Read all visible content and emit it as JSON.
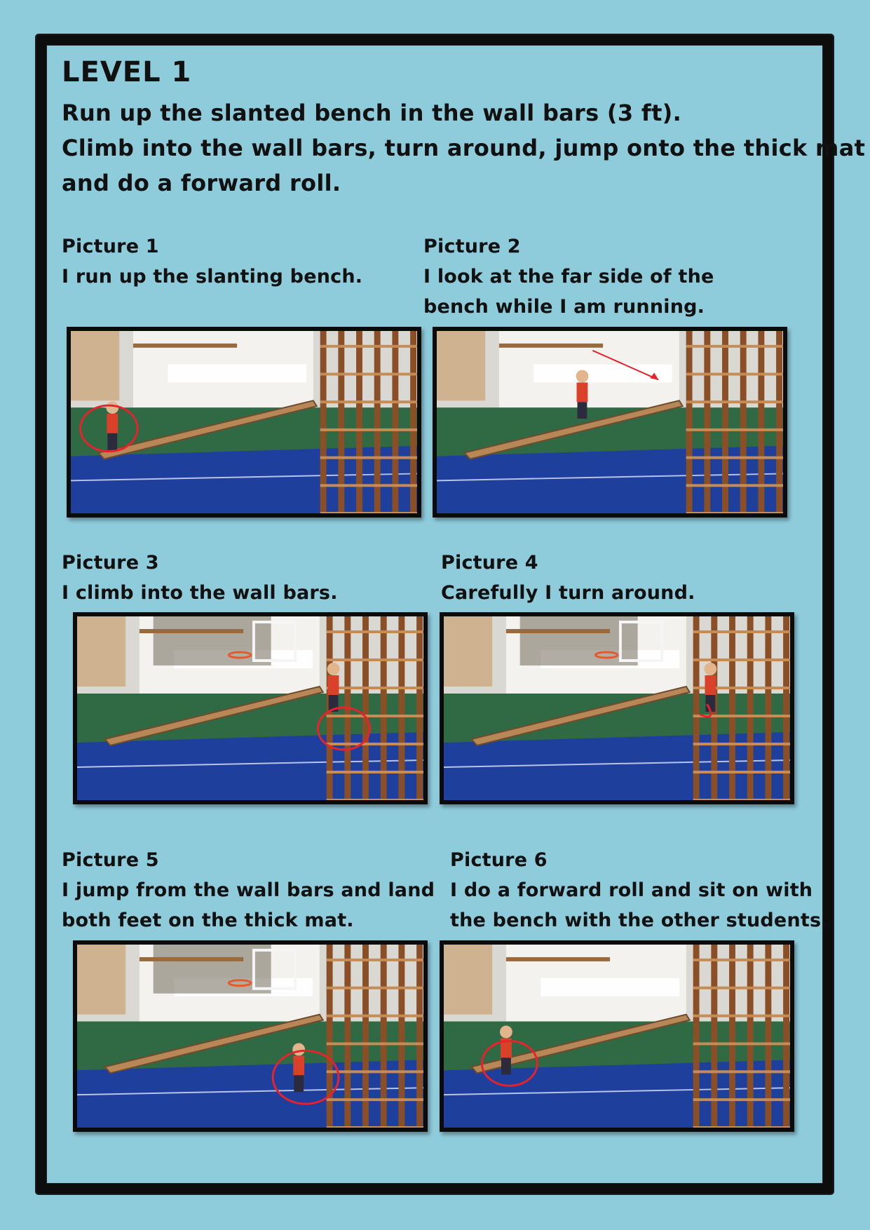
{
  "level_title": "LEVEL 1",
  "instructions": [
    "Run up the slanted bench in the wall bars (3 ft).",
    "Climb into the wall bars, turn around, jump onto the thick mat",
    "and do a forward roll."
  ],
  "pictures": [
    {
      "title": "Picture 1",
      "lines": [
        "I run up the slanting bench.",
        ""
      ]
    },
    {
      "title": "Picture 2",
      "lines": [
        "I look at the far side of the",
        "bench while I am running."
      ]
    },
    {
      "title": "Picture 3",
      "lines": [
        "I climb into the wall bars.",
        ""
      ]
    },
    {
      "title": "Picture 4",
      "lines": [
        "Carefully I turn around.",
        ""
      ]
    },
    {
      "title": "Picture 5",
      "lines": [
        "I jump from the wall bars and land",
        "both feet on the thick mat."
      ]
    },
    {
      "title": "Picture 6",
      "lines": [
        "I do a forward roll and sit on with",
        "the bench with the other students."
      ]
    }
  ],
  "colors": {
    "background": "#8ecbdb",
    "border": "#0d0d0d",
    "text": "#111111",
    "mat_blue": "#1f3f9c",
    "floor_green": "#2f6a45",
    "annotation_red": "#e8222a"
  }
}
